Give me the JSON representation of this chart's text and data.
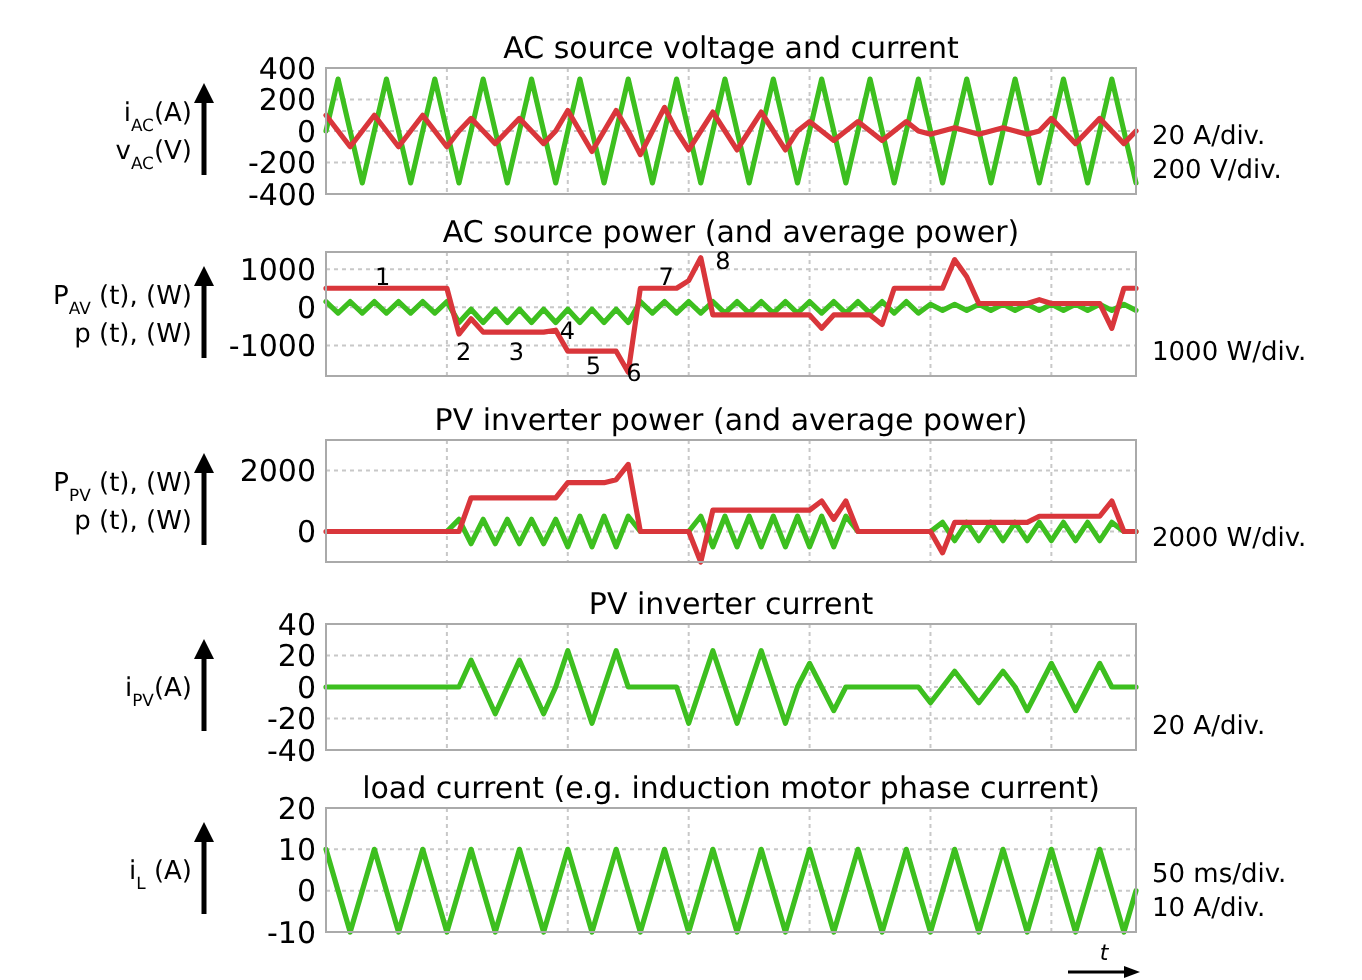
{
  "chart_data": [
    {
      "type": "line",
      "title": "AC source voltage and current",
      "ylabel": "i$_{AC}$(A)\nv$_{AC}$(V)",
      "categories": [
        null,
        null,
        null,
        null,
        null,
        null,
        null,
        null,
        null,
        null,
        null,
        null,
        null,
        null,
        null,
        null,
        null,
        null,
        null,
        null,
        null,
        null,
        null,
        null,
        null,
        null,
        null,
        null,
        null,
        null,
        null,
        null,
        null,
        null,
        null,
        null,
        null,
        null,
        null,
        null,
        null,
        null,
        null,
        null,
        null,
        null,
        null,
        null,
        null,
        null,
        null,
        null,
        null,
        null,
        null,
        null,
        null,
        null,
        null,
        null,
        null,
        null,
        null,
        null,
        null,
        null,
        null,
        null
      ],
      "ylim": [
        -400,
        400
      ],
      "yticks": [
        -400,
        -200,
        0,
        200,
        400
      ],
      "grid": true,
      "annotations": [
        "20 A/div.",
        "200 V/div."
      ],
      "series": [
        {
          "color": "#3dbf1f",
          "values": [
            0,
            330,
            0,
            -330,
            0,
            330,
            0,
            -330,
            0,
            330,
            0,
            -330,
            0,
            330,
            0,
            -330,
            0,
            330,
            0,
            -330,
            0,
            330,
            0,
            -330,
            0,
            330,
            0,
            -330,
            0,
            330,
            0,
            -330,
            0,
            330,
            0,
            -330,
            0,
            330,
            0,
            -330,
            0,
            330,
            0,
            -330,
            0,
            330,
            0,
            -330,
            0,
            330,
            0,
            -330,
            0,
            330,
            0,
            -330,
            0,
            330,
            0,
            -330,
            0,
            330,
            0,
            -330,
            0,
            330,
            0,
            -330
          ]
        },
        {
          "color": "#d9363b",
          "values": [
            100,
            0,
            -100,
            0,
            100,
            0,
            -100,
            0,
            100,
            0,
            -100,
            0,
            80,
            0,
            -80,
            0,
            80,
            0,
            -80,
            0,
            130,
            0,
            -130,
            0,
            130,
            0,
            -150,
            0,
            150,
            0,
            -120,
            0,
            120,
            0,
            -120,
            0,
            120,
            0,
            -120,
            0,
            60,
            0,
            -60,
            0,
            60,
            0,
            -60,
            0,
            60,
            0,
            -20,
            0,
            20,
            0,
            -20,
            0,
            20,
            0,
            -20,
            0,
            80,
            0,
            -80,
            0,
            80,
            0,
            -80,
            0
          ]
        }
      ]
    },
    {
      "type": "line",
      "title": "AC source power (and average power)",
      "ylabel": "P$_{AV}$ (t), (W)\np (t), (W)",
      "categories": [
        null,
        null,
        null,
        null,
        null,
        null,
        null,
        null,
        null,
        null,
        null,
        null,
        null,
        null,
        null,
        null,
        null,
        null,
        null,
        null,
        null,
        null,
        null,
        null,
        null,
        null,
        null,
        null,
        null,
        null,
        null,
        null,
        null,
        null,
        null,
        null,
        null,
        null,
        null,
        null,
        null,
        null,
        null,
        null,
        null,
        null,
        null,
        null,
        null,
        null,
        null,
        null,
        null,
        null,
        null,
        null,
        null,
        null,
        null,
        null,
        null,
        null,
        null,
        null,
        null,
        null,
        null,
        null
      ],
      "ylim": [
        -1800,
        1450
      ],
      "yticks": [
        -1000,
        0,
        1000
      ],
      "grid": true,
      "annotations": [
        "1",
        "2",
        "3",
        "4",
        "5",
        "6",
        "7",
        "8",
        "1000 W/div."
      ],
      "series": [
        {
          "color": "#3dbf1f",
          "values": [
            150,
            -150,
            150,
            -150,
            150,
            -150,
            150,
            -150,
            150,
            -150,
            150,
            -400,
            -50,
            -400,
            -50,
            -400,
            -50,
            -400,
            -50,
            -400,
            -50,
            -400,
            -50,
            -400,
            -50,
            -400,
            150,
            -150,
            150,
            -150,
            150,
            -150,
            150,
            -150,
            150,
            -150,
            150,
            -150,
            150,
            -150,
            150,
            -150,
            150,
            -150,
            150,
            -150,
            150,
            -150,
            150,
            -150,
            80,
            -80,
            80,
            -80,
            80,
            -80,
            80,
            -80,
            80,
            -80,
            80,
            -80,
            80,
            -80,
            80,
            -80,
            80,
            -80
          ]
        },
        {
          "color": "#d9363b",
          "values": [
            500,
            500,
            500,
            500,
            500,
            500,
            500,
            500,
            500,
            500,
            500,
            -700,
            -300,
            -650,
            -650,
            -650,
            -650,
            -650,
            -650,
            -600,
            -1150,
            -1150,
            -1150,
            -1150,
            -1150,
            -1700,
            500,
            500,
            500,
            500,
            700,
            1300,
            -200,
            -200,
            -200,
            -200,
            -200,
            -200,
            -200,
            -200,
            -200,
            -550,
            -200,
            -200,
            -200,
            -200,
            -450,
            500,
            500,
            500,
            500,
            500,
            1250,
            800,
            100,
            100,
            100,
            100,
            100,
            200,
            100,
            100,
            100,
            100,
            100,
            -550,
            500,
            500
          ]
        }
      ]
    },
    {
      "type": "line",
      "title": "PV inverter power (and average power)",
      "ylabel": "P$_{PV}$ (t), (W)\np (t), (W)",
      "categories": [
        null,
        null,
        null,
        null,
        null,
        null,
        null,
        null,
        null,
        null,
        null,
        null,
        null,
        null,
        null,
        null,
        null,
        null,
        null,
        null,
        null,
        null,
        null,
        null,
        null,
        null,
        null,
        null,
        null,
        null,
        null,
        null,
        null,
        null,
        null,
        null,
        null,
        null,
        null,
        null,
        null,
        null,
        null,
        null,
        null,
        null,
        null,
        null,
        null,
        null,
        null,
        null,
        null,
        null,
        null,
        null,
        null,
        null,
        null,
        null,
        null,
        null,
        null,
        null,
        null,
        null,
        null,
        null
      ],
      "ylim": [
        -1000,
        3000
      ],
      "yticks": [
        0,
        2000
      ],
      "grid": true,
      "annotations": [
        "2000 W/div."
      ],
      "series": [
        {
          "color": "#3dbf1f",
          "values": [
            null,
            null,
            null,
            null,
            null,
            null,
            null,
            null,
            null,
            null,
            0,
            400,
            -400,
            400,
            -400,
            400,
            -400,
            400,
            -400,
            400,
            -500,
            500,
            -500,
            500,
            -500,
            500,
            0,
            0,
            0,
            0,
            0,
            500,
            -500,
            500,
            -500,
            500,
            -500,
            500,
            -500,
            500,
            -500,
            500,
            -500,
            500,
            0,
            0,
            0,
            0,
            0,
            0,
            0,
            300,
            -300,
            300,
            -300,
            300,
            -300,
            300,
            -300,
            300,
            -300,
            300,
            -300,
            300,
            -300,
            300,
            0,
            0
          ]
        },
        {
          "color": "#d9363b",
          "values": [
            0,
            0,
            0,
            0,
            0,
            0,
            0,
            0,
            0,
            0,
            0,
            0,
            1100,
            1100,
            1100,
            1100,
            1100,
            1100,
            1100,
            1100,
            1600,
            1600,
            1600,
            1600,
            1700,
            2200,
            0,
            0,
            0,
            0,
            0,
            -1000,
            700,
            700,
            700,
            700,
            700,
            700,
            700,
            700,
            700,
            1000,
            400,
            1000,
            0,
            0,
            0,
            0,
            0,
            0,
            0,
            -700,
            300,
            300,
            300,
            300,
            300,
            300,
            300,
            500,
            500,
            500,
            500,
            500,
            500,
            1000,
            0,
            0
          ]
        }
      ]
    },
    {
      "type": "line",
      "title": "PV inverter current",
      "ylabel": "i$_{PV}$(A)",
      "categories": [
        null,
        null,
        null,
        null,
        null,
        null,
        null,
        null,
        null,
        null,
        null,
        null,
        null,
        null,
        null,
        null,
        null,
        null,
        null,
        null,
        null,
        null,
        null,
        null,
        null,
        null,
        null,
        null,
        null,
        null,
        null,
        null,
        null,
        null,
        null,
        null,
        null,
        null,
        null,
        null,
        null,
        null,
        null,
        null,
        null,
        null,
        null,
        null,
        null,
        null,
        null,
        null,
        null,
        null,
        null,
        null,
        null,
        null,
        null,
        null,
        null,
        null,
        null,
        null,
        null,
        null,
        null,
        null
      ],
      "ylim": [
        -40,
        40
      ],
      "yticks": [
        -40,
        -20,
        0,
        20,
        40
      ],
      "grid": true,
      "annotations": [
        "20 A/div."
      ],
      "series": [
        {
          "color": "#3dbf1f",
          "values": [
            0,
            0,
            0,
            0,
            0,
            0,
            0,
            0,
            0,
            0,
            0,
            0,
            17,
            0,
            -17,
            0,
            17,
            0,
            -17,
            0,
            23,
            0,
            -23,
            0,
            23,
            0,
            0,
            0,
            0,
            0,
            -23,
            0,
            23,
            0,
            -23,
            0,
            23,
            0,
            -23,
            0,
            15,
            0,
            -15,
            0,
            0,
            0,
            0,
            0,
            0,
            0,
            -10,
            0,
            10,
            0,
            -10,
            0,
            10,
            0,
            -15,
            0,
            15,
            0,
            -15,
            0,
            15,
            0,
            0,
            0
          ]
        }
      ]
    },
    {
      "type": "line",
      "title": "load current (e.g. induction motor phase current)",
      "ylabel": "i$_{L}$ (A)",
      "xlabel": "t",
      "categories": [
        null,
        null,
        null,
        null,
        null,
        null,
        null,
        null,
        null,
        null,
        null,
        null,
        null,
        null,
        null,
        null,
        null,
        null,
        null,
        null,
        null,
        null,
        null,
        null,
        null,
        null,
        null,
        null,
        null,
        null,
        null,
        null,
        null,
        null,
        null,
        null,
        null,
        null,
        null,
        null,
        null,
        null,
        null,
        null,
        null,
        null,
        null,
        null,
        null,
        null,
        null,
        null,
        null,
        null,
        null,
        null,
        null,
        null,
        null,
        null,
        null,
        null,
        null,
        null,
        null,
        null,
        null,
        null
      ],
      "ylim": [
        -10,
        20
      ],
      "yticks": [
        -10,
        0,
        10,
        20
      ],
      "grid": true,
      "annotations": [
        "50 ms/div.",
        "10 A/div."
      ],
      "series": [
        {
          "color": "#3dbf1f",
          "values": [
            10,
            0,
            -10,
            0,
            10,
            0,
            -10,
            0,
            10,
            0,
            -10,
            0,
            10,
            0,
            -10,
            0,
            10,
            0,
            -10,
            0,
            10,
            0,
            -10,
            0,
            10,
            0,
            -10,
            0,
            10,
            0,
            -10,
            0,
            10,
            0,
            -10,
            0,
            10,
            0,
            -10,
            0,
            10,
            0,
            -10,
            0,
            10,
            0,
            -10,
            0,
            10,
            0,
            -10,
            0,
            10,
            0,
            -10,
            0,
            10,
            0,
            -10,
            0,
            10,
            0,
            -10,
            0,
            10,
            0,
            -10,
            0
          ]
        }
      ]
    }
  ]
}
